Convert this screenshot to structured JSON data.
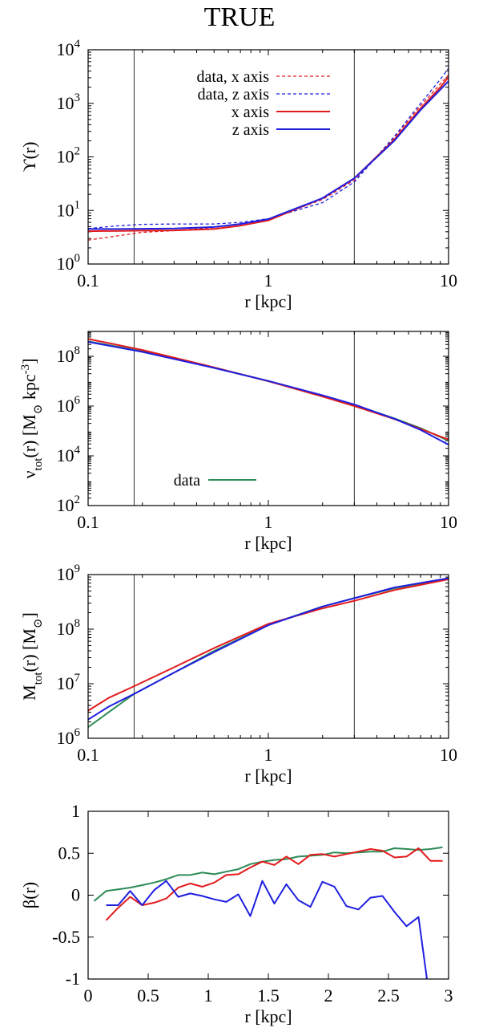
{
  "title": "TRUE",
  "colors": {
    "red": "#e31a1c",
    "blue": "#1f1fe0",
    "green": "#2e8b57",
    "frame": "#000000",
    "marker_line": "#333333"
  },
  "chart_data": [
    {
      "type": "line",
      "x_log": true,
      "y_log": true,
      "xlim": [
        0.1,
        10
      ],
      "ylim": [
        1,
        10000
      ],
      "xlabel": "r [kpc]",
      "ylabel": "ϒ(r)",
      "x_tick_values": [
        0.1,
        1,
        10
      ],
      "x_tick_labels": [
        "0.1",
        "1",
        "10"
      ],
      "y_tick_values": [
        1,
        10,
        100,
        1000,
        10000
      ],
      "y_tick_labels": [
        {
          "base": "10",
          "exp": "0"
        },
        {
          "base": "10",
          "exp": "1"
        },
        {
          "base": "10",
          "exp": "2"
        },
        {
          "base": "10",
          "exp": "3"
        },
        {
          "base": "10",
          "exp": "4"
        }
      ],
      "vlines": [
        0.18,
        3.0
      ],
      "legend": "top-left",
      "series": [
        {
          "name": "data, x axis",
          "color": "red",
          "dash": true,
          "x": [
            0.1,
            0.15,
            0.2,
            0.3,
            0.5,
            0.7,
            1,
            2,
            3,
            5,
            7,
            9,
            10
          ],
          "y": [
            2.8,
            3.4,
            3.9,
            4.2,
            4.8,
            5.6,
            6.8,
            16,
            37,
            230,
            900,
            2300,
            3400
          ]
        },
        {
          "name": "data, z axis",
          "color": "blue",
          "dash": true,
          "x": [
            0.1,
            0.15,
            0.2,
            0.3,
            0.5,
            0.7,
            1,
            2,
            3,
            5,
            7,
            9,
            10
          ],
          "y": [
            4.6,
            5.2,
            5.5,
            5.6,
            5.6,
            6,
            7,
            14,
            34,
            240,
            1000,
            2800,
            4500
          ]
        },
        {
          "name": "x axis",
          "color": "red",
          "dash": false,
          "x": [
            0.1,
            0.15,
            0.2,
            0.3,
            0.5,
            0.7,
            1,
            2,
            3,
            5,
            7,
            9,
            10
          ],
          "y": [
            4.1,
            4.15,
            4.2,
            4.25,
            4.5,
            5.2,
            6.5,
            17,
            40,
            210,
            800,
            2000,
            3100
          ]
        },
        {
          "name": "z axis",
          "color": "blue",
          "dash": false,
          "x": [
            0.1,
            0.15,
            0.2,
            0.3,
            0.5,
            0.7,
            1,
            2,
            3,
            5,
            7,
            9,
            10
          ],
          "y": [
            4.5,
            4.5,
            4.55,
            4.6,
            4.9,
            5.6,
            6.9,
            17,
            40,
            200,
            750,
            1800,
            2600
          ]
        }
      ]
    },
    {
      "type": "line",
      "x_log": true,
      "y_log": true,
      "xlim": [
        0.1,
        10
      ],
      "ylim": [
        100,
        1000000000
      ],
      "xlabel": "r [kpc]",
      "ylabel_parts": [
        {
          "t": "ν"
        },
        {
          "t": "tot",
          "sub": true
        },
        {
          "t": "(r) [M"
        },
        {
          "t": "⊙",
          "sub": true
        },
        {
          "t": " kpc"
        },
        {
          "t": "-3",
          "sup": true
        },
        {
          "t": "]"
        }
      ],
      "x_tick_values": [
        0.1,
        1,
        10
      ],
      "x_tick_labels": [
        "0.1",
        "1",
        "10"
      ],
      "y_tick_values": [
        100,
        10000,
        1000000,
        100000000
      ],
      "y_tick_labels": [
        {
          "base": "10",
          "exp": "2"
        },
        {
          "base": "10",
          "exp": "4"
        },
        {
          "base": "10",
          "exp": "6"
        },
        {
          "base": "10",
          "exp": "8"
        }
      ],
      "vlines": [
        0.18,
        3.0
      ],
      "legend": "bottom-left",
      "series": [
        {
          "name": "data",
          "color": "green",
          "dash": false,
          "x": [
            0.1,
            0.2,
            0.5,
            1,
            2,
            3,
            5,
            7,
            10
          ],
          "y": [
            400000000,
            160000000,
            35000000,
            10000000,
            2600000,
            1100000,
            320000,
            130000,
            40000
          ]
        },
        {
          "color": "red",
          "dash": false,
          "x": [
            0.1,
            0.2,
            0.5,
            1,
            2,
            3,
            5,
            7,
            10
          ],
          "y": [
            500000000,
            180000000,
            36000000,
            10000000,
            2400000,
            1000000,
            300000,
            120000,
            45000
          ]
        },
        {
          "color": "blue",
          "dash": false,
          "x": [
            0.1,
            0.2,
            0.5,
            1,
            2,
            3,
            5,
            7,
            10
          ],
          "y": [
            380000000,
            150000000,
            34000000,
            10200000,
            2700000,
            1150000,
            310000,
            110000,
            28000
          ]
        }
      ]
    },
    {
      "type": "line",
      "x_log": true,
      "y_log": true,
      "xlim": [
        0.1,
        10
      ],
      "ylim": [
        1000000,
        1000000000
      ],
      "xlabel": "r [kpc]",
      "ylabel_parts": [
        {
          "t": "M"
        },
        {
          "t": "tot",
          "sub": true
        },
        {
          "t": "(r) [M"
        },
        {
          "t": "⊙",
          "sub": true
        },
        {
          "t": "]"
        }
      ],
      "x_tick_values": [
        0.1,
        1,
        10
      ],
      "x_tick_labels": [
        "0.1",
        "1",
        "10"
      ],
      "y_tick_values": [
        1000000,
        10000000,
        100000000,
        1000000000
      ],
      "y_tick_labels": [
        {
          "base": "10",
          "exp": "6"
        },
        {
          "base": "10",
          "exp": "7"
        },
        {
          "base": "10",
          "exp": "8"
        },
        {
          "base": "10",
          "exp": "9"
        }
      ],
      "vlines": [
        0.18,
        3.0
      ],
      "series": [
        {
          "color": "green",
          "dash": false,
          "x": [
            0.1,
            0.13,
            0.18,
            0.3,
            0.5,
            1,
            2,
            3,
            5,
            10
          ],
          "y": [
            1600000,
            3000000,
            6500000,
            16000000,
            40000000,
            120000000,
            260000000,
            370000000,
            560000000,
            850000000
          ]
        },
        {
          "color": "red",
          "dash": false,
          "x": [
            0.1,
            0.13,
            0.18,
            0.3,
            0.5,
            1,
            2,
            3,
            5,
            10
          ],
          "y": [
            3200000,
            5500000,
            9000000,
            20000000,
            45000000,
            125000000,
            240000000,
            330000000,
            520000000,
            820000000
          ]
        },
        {
          "color": "blue",
          "dash": false,
          "x": [
            0.1,
            0.13,
            0.18,
            0.3,
            0.5,
            1,
            2,
            3,
            5,
            10
          ],
          "y": [
            2200000,
            3800000,
            6500000,
            16000000,
            38000000,
            118000000,
            260000000,
            370000000,
            580000000,
            860000000
          ]
        }
      ]
    },
    {
      "type": "line",
      "x_log": false,
      "y_log": false,
      "xlim": [
        0,
        3
      ],
      "ylim": [
        -1,
        1
      ],
      "xlabel": "r [kpc]",
      "ylabel": "β(r)",
      "x_tick_values": [
        0,
        0.5,
        1,
        1.5,
        2,
        2.5,
        3
      ],
      "x_tick_labels": [
        "0",
        "0.5",
        "1",
        "1.5",
        "2",
        "2.5",
        "3"
      ],
      "y_tick_values": [
        -1,
        -0.5,
        0,
        0.5,
        1
      ],
      "y_tick_labels": [
        "-1",
        "-0.5",
        "0",
        "0.5",
        "1"
      ],
      "vlines": [],
      "series": [
        {
          "color": "green",
          "dash": false,
          "x": [
            0.05,
            0.15,
            0.25,
            0.35,
            0.45,
            0.55,
            0.65,
            0.75,
            0.85,
            0.95,
            1.05,
            1.15,
            1.25,
            1.35,
            1.45,
            1.55,
            1.65,
            1.75,
            1.85,
            1.95,
            2.05,
            2.15,
            2.25,
            2.35,
            2.45,
            2.55,
            2.65,
            2.75,
            2.85,
            2.95
          ],
          "y": [
            -0.07,
            0.05,
            0.07,
            0.09,
            0.12,
            0.15,
            0.19,
            0.24,
            0.24,
            0.27,
            0.25,
            0.28,
            0.31,
            0.37,
            0.4,
            0.42,
            0.43,
            0.46,
            0.47,
            0.48,
            0.51,
            0.5,
            0.51,
            0.52,
            0.52,
            0.56,
            0.55,
            0.54,
            0.55,
            0.57
          ]
        },
        {
          "color": "red",
          "dash": false,
          "x": [
            0.15,
            0.25,
            0.35,
            0.45,
            0.55,
            0.65,
            0.75,
            0.85,
            0.95,
            1.05,
            1.15,
            1.25,
            1.35,
            1.45,
            1.55,
            1.65,
            1.75,
            1.85,
            1.95,
            2.05,
            2.15,
            2.25,
            2.35,
            2.45,
            2.55,
            2.65,
            2.75,
            2.85,
            2.95
          ],
          "y": [
            -0.3,
            -0.15,
            -0.02,
            -0.12,
            -0.09,
            -0.04,
            0.09,
            0.14,
            0.1,
            0.15,
            0.24,
            0.25,
            0.33,
            0.4,
            0.36,
            0.46,
            0.37,
            0.48,
            0.49,
            0.46,
            0.49,
            0.52,
            0.55,
            0.53,
            0.45,
            0.46,
            0.56,
            0.41,
            0.41
          ]
        },
        {
          "color": "blue",
          "dash": false,
          "x": [
            0.15,
            0.25,
            0.35,
            0.45,
            0.55,
            0.65,
            0.75,
            0.85,
            0.95,
            1.05,
            1.15,
            1.25,
            1.35,
            1.45,
            1.55,
            1.65,
            1.75,
            1.85,
            1.95,
            2.05,
            2.15,
            2.25,
            2.35,
            2.45,
            2.55,
            2.65,
            2.75,
            2.82
          ],
          "y": [
            -0.12,
            -0.12,
            0.05,
            -0.12,
            0.06,
            0.17,
            -0.02,
            0.02,
            -0.01,
            -0.05,
            -0.08,
            0.01,
            -0.25,
            0.17,
            -0.1,
            0.13,
            -0.06,
            -0.14,
            0.16,
            0.1,
            -0.13,
            -0.17,
            -0.03,
            -0.01,
            -0.2,
            -0.37,
            -0.26,
            -1.0
          ]
        }
      ]
    }
  ]
}
